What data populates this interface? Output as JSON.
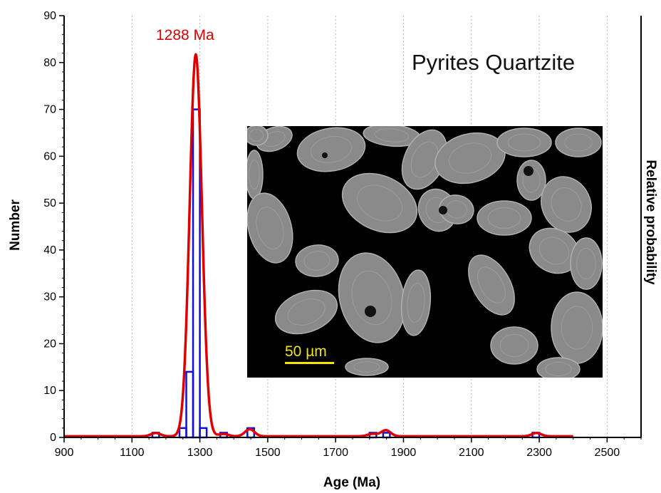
{
  "chart_data": {
    "type": "histogram with probability density curve",
    "title": "Pyrites Quartzite",
    "xlabel": "Age (Ma)",
    "ylabel": "Number",
    "y2label": "Relative probability",
    "xlim": [
      900,
      2600
    ],
    "ylim": [
      0,
      90
    ],
    "xticks": [
      900,
      1100,
      1300,
      1500,
      1700,
      1900,
      2100,
      2300,
      2500
    ],
    "yticks": [
      0,
      10,
      20,
      30,
      40,
      50,
      60,
      70,
      80,
      90
    ],
    "grid": "vertical dotted",
    "histogram": {
      "bin_width": 20,
      "bins": [
        {
          "x": 1160,
          "count": 1
        },
        {
          "x": 1240,
          "count": 2
        },
        {
          "x": 1260,
          "count": 14
        },
        {
          "x": 1280,
          "count": 70
        },
        {
          "x": 1300,
          "count": 2
        },
        {
          "x": 1360,
          "count": 1
        },
        {
          "x": 1440,
          "count": 2
        },
        {
          "x": 1800,
          "count": 1
        },
        {
          "x": 1840,
          "count": 1
        },
        {
          "x": 2280,
          "count": 1
        }
      ]
    },
    "probability_curve": {
      "peaks": [
        {
          "center": 1288,
          "height": 81.5,
          "sigma": 18
        },
        {
          "center": 1170,
          "height": 0.7,
          "sigma": 14
        },
        {
          "center": 1370,
          "height": 0.5,
          "sigma": 14
        },
        {
          "center": 1447,
          "height": 1.5,
          "sigma": 14
        },
        {
          "center": 1808,
          "height": 0.5,
          "sigma": 14
        },
        {
          "center": 1848,
          "height": 1.3,
          "sigma": 14
        },
        {
          "center": 2292,
          "height": 0.7,
          "sigma": 14
        }
      ]
    },
    "annotations": {
      "peak_label": "1288 Ma",
      "scale_bar_label": "50 µm"
    },
    "colors": {
      "curve": "#e00000",
      "histogram": "#1010d8",
      "inset_background": "#000000",
      "grain": "#8a8a8a",
      "scale_bar": "#f2e600"
    }
  }
}
